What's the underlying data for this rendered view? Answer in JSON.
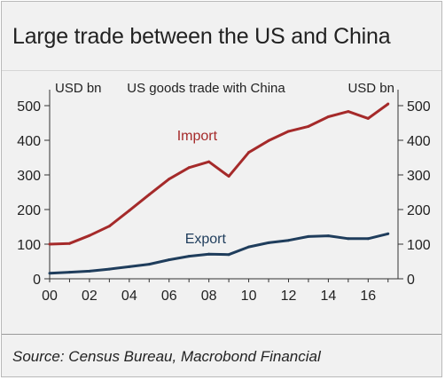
{
  "title": "Large trade between the US and China",
  "source": "Source: Census Bureau, Macrobond Financial",
  "chart_data": {
    "type": "line",
    "title": "US goods trade with China",
    "ylabel_left": "USD bn",
    "ylabel_right": "USD bn",
    "x": [
      2000,
      2001,
      2002,
      2003,
      2004,
      2005,
      2006,
      2007,
      2008,
      2009,
      2010,
      2011,
      2012,
      2013,
      2014,
      2015,
      2016,
      2017
    ],
    "x_tick_labels": [
      "00",
      "02",
      "04",
      "06",
      "08",
      "10",
      "12",
      "14",
      "16"
    ],
    "x_tick_values": [
      2000,
      2002,
      2004,
      2006,
      2008,
      2010,
      2012,
      2014,
      2016
    ],
    "xlim": [
      2000,
      2017.5
    ],
    "ylim": [
      0,
      500
    ],
    "y_ticks": [
      0,
      100,
      200,
      300,
      400,
      500
    ],
    "series": [
      {
        "name": "Import",
        "color": "#a52a2a",
        "values": [
          100,
          102,
          125,
          152,
          197,
          243,
          288,
          321,
          338,
          296,
          365,
          399,
          426,
          440,
          468,
          483,
          463,
          505
        ]
      },
      {
        "name": "Export",
        "color": "#1f3d5c",
        "values": [
          16,
          19,
          22,
          28,
          35,
          42,
          55,
          65,
          71,
          70,
          92,
          104,
          111,
          122,
          124,
          116,
          116,
          130
        ]
      }
    ],
    "grid": false,
    "legend": "inline labels on lines"
  }
}
